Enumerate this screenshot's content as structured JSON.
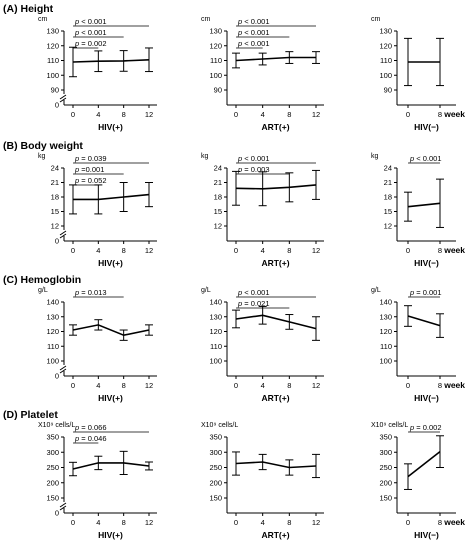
{
  "week_label": "week",
  "chart_data": [
    {
      "type": "line",
      "section": "(A) Height",
      "panels": [
        {
          "unit": "cm",
          "xlabel": "HIV(+)",
          "x": [
            0,
            4,
            8,
            12
          ],
          "mean": [
            109,
            109.5,
            109.7,
            110.5
          ],
          "err": [
            10,
            7,
            7,
            8
          ],
          "ylim": [
            90,
            130
          ],
          "yticks": [
            90,
            100,
            110,
            120,
            130
          ],
          "broken_axis": true,
          "annotations": [
            {
              "label": "p < 0.001",
              "from": 0,
              "to": 12
            },
            {
              "label": "p < 0.001",
              "from": 0,
              "to": 8
            },
            {
              "label": "p = 0.002",
              "from": 0,
              "to": 4
            }
          ]
        },
        {
          "unit": "cm",
          "xlabel": "ART(+)",
          "x": [
            0,
            4,
            8,
            12
          ],
          "mean": [
            110,
            111,
            112,
            112
          ],
          "err": [
            5,
            4,
            4,
            4
          ],
          "ylim": [
            90,
            130
          ],
          "yticks": [
            90,
            100,
            110,
            120,
            130
          ],
          "broken_axis": false,
          "annotations": [
            {
              "label": "p < 0.001",
              "from": 0,
              "to": 12
            },
            {
              "label": "p < 0.001",
              "from": 0,
              "to": 8
            },
            {
              "label": "p < 0.001",
              "from": 0,
              "to": 4
            }
          ]
        },
        {
          "unit": "cm",
          "xlabel": "HIV(−)",
          "x": [
            0,
            8
          ],
          "mean": [
            109,
            109
          ],
          "err": [
            16,
            16
          ],
          "ylim": [
            90,
            130
          ],
          "yticks": [
            90,
            100,
            110,
            120,
            130
          ],
          "broken_axis": false,
          "annotations": []
        }
      ]
    },
    {
      "type": "line",
      "section": "(B) Body weight",
      "panels": [
        {
          "unit": "kg",
          "xlabel": "HIV(+)",
          "x": [
            0,
            4,
            8,
            12
          ],
          "mean": [
            17.5,
            17.5,
            18,
            18.5
          ],
          "err": [
            3,
            3,
            3,
            2.5
          ],
          "ylim": [
            12,
            24
          ],
          "yticks": [
            12,
            15,
            18,
            21,
            24
          ],
          "broken_axis": true,
          "annotations": [
            {
              "label": "p = 0.039",
              "from": 0,
              "to": 12
            },
            {
              "label": "p =0.001",
              "from": 0,
              "to": 8
            },
            {
              "label": "p = 0.052",
              "from": 0,
              "to": 4
            }
          ]
        },
        {
          "unit": "kg",
          "xlabel": "ART(+)",
          "x": [
            0,
            4,
            8,
            12
          ],
          "mean": [
            19.8,
            19.7,
            20,
            20.5
          ],
          "err": [
            3.5,
            3.5,
            3,
            3
          ],
          "ylim": [
            12,
            24
          ],
          "yticks": [
            12,
            15,
            18,
            21,
            24
          ],
          "broken_axis": false,
          "annotations": [
            {
              "label": "p < 0.001",
              "from": 0,
              "to": 12
            },
            {
              "label": "p = 0.003",
              "from": 0,
              "to": 8
            }
          ]
        },
        {
          "unit": "kg",
          "xlabel": "HIV(−)",
          "x": [
            0,
            8
          ],
          "mean": [
            16,
            16.7
          ],
          "err": [
            3,
            5
          ],
          "ylim": [
            12,
            24
          ],
          "yticks": [
            12,
            15,
            18,
            21,
            24
          ],
          "broken_axis": false,
          "annotations": [
            {
              "label": "p < 0.001",
              "from": 0,
              "to": 8
            }
          ]
        }
      ]
    },
    {
      "type": "line",
      "section": "(C) Hemoglobin",
      "panels": [
        {
          "unit": "g/L",
          "xlabel": "HIV(+)",
          "x": [
            0,
            4,
            8,
            12
          ],
          "mean": [
            121,
            124.5,
            117.5,
            121
          ],
          "err": [
            3.5,
            3.5,
            3.5,
            3.5
          ],
          "ylim": [
            100,
            140
          ],
          "yticks": [
            100,
            110,
            120,
            130,
            140
          ],
          "broken_axis": true,
          "annotations": [
            {
              "label": "p = 0.013",
              "from": 0,
              "to": 8
            }
          ]
        },
        {
          "unit": "g/L",
          "xlabel": "ART(+)",
          "x": [
            0,
            4,
            8,
            12
          ],
          "mean": [
            128.5,
            131,
            126.5,
            122
          ],
          "err": [
            6,
            6,
            5,
            8
          ],
          "ylim": [
            100,
            140
          ],
          "yticks": [
            100,
            110,
            120,
            130,
            140
          ],
          "broken_axis": false,
          "annotations": [
            {
              "label": "p < 0.001",
              "from": 0,
              "to": 12
            },
            {
              "label": "p = 0.021",
              "from": 0,
              "to": 8
            }
          ]
        },
        {
          "unit": "g/L",
          "xlabel": "HIV(−)",
          "x": [
            0,
            8
          ],
          "mean": [
            130.5,
            124
          ],
          "err": [
            7,
            8
          ],
          "ylim": [
            100,
            140
          ],
          "yticks": [
            100,
            110,
            120,
            130,
            140
          ],
          "broken_axis": false,
          "annotations": [
            {
              "label": "p = 0.001",
              "from": 0,
              "to": 8
            }
          ]
        }
      ]
    },
    {
      "type": "line",
      "section": "(D) Platelet",
      "panels": [
        {
          "unit": "X10⁹ cells/L",
          "xlabel": "HIV(+)",
          "x": [
            0,
            4,
            8,
            12
          ],
          "mean": [
            245,
            265,
            265,
            255
          ],
          "err": [
            22,
            22,
            38,
            13
          ],
          "ylim": [
            150,
            350
          ],
          "yticks": [
            150,
            200,
            250,
            300,
            350
          ],
          "broken_axis": true,
          "annotations": [
            {
              "label": "p = 0.066",
              "from": 0,
              "to": 12
            },
            {
              "label": "p = 0.046",
              "from": 0,
              "to": 4
            }
          ]
        },
        {
          "unit": "X10⁹ cells/L",
          "xlabel": "ART(+)",
          "x": [
            0,
            4,
            8,
            12
          ],
          "mean": [
            263,
            268,
            250,
            255
          ],
          "err": [
            38,
            25,
            25,
            38
          ],
          "ylim": [
            150,
            350
          ],
          "yticks": [
            150,
            200,
            250,
            300,
            350
          ],
          "broken_axis": false,
          "annotations": []
        },
        {
          "unit": "X10⁹ cells/L",
          "xlabel": "HIV(−)",
          "x": [
            0,
            8
          ],
          "mean": [
            220,
            302
          ],
          "err": [
            42,
            52
          ],
          "ylim": [
            150,
            350
          ],
          "yticks": [
            150,
            200,
            250,
            300,
            350
          ],
          "broken_axis": false,
          "annotations": [
            {
              "label": "p = 0.002",
              "from": 0,
              "to": 8
            }
          ]
        }
      ]
    }
  ]
}
